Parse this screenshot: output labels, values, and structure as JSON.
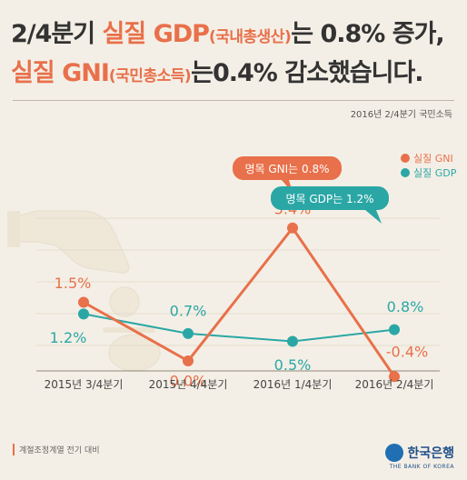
{
  "headline": {
    "line1": {
      "a": "2/4분기 ",
      "b": "실질 GDP",
      "c": "(국내총생산)",
      "d": "는 0.8% 증가,"
    },
    "line2": {
      "a": "실질 GNI",
      "b": "(국민총소득)",
      "c": "는0.4% 감소했습니다."
    }
  },
  "source": "2016년 2/4분기 국민소득",
  "footnote": "계절조정계열 전기 대비",
  "logo": {
    "name": "한국은행",
    "sub": "THE BANK OF KOREA"
  },
  "colors": {
    "gni": "#e8704a",
    "gdp": "#2aa7a5",
    "text": "#333333",
    "background": "#f4efe6"
  },
  "chart_data": {
    "type": "line",
    "categories": [
      "2015년 3/4분기",
      "2015년 4/4분기",
      "2016년 1/4분기",
      "2016년 2/4분기"
    ],
    "series": [
      {
        "name": "실질 GNI",
        "values": [
          1.5,
          0.0,
          3.4,
          -0.4
        ],
        "labels": [
          "1.5%",
          "0.0%",
          "3.4%",
          "-0.4%"
        ],
        "color": "#e8704a"
      },
      {
        "name": "실질 GDP",
        "values": [
          1.2,
          0.7,
          0.5,
          0.8
        ],
        "labels": [
          "1.2%",
          "0.7%",
          "0.5%",
          "0.8%"
        ],
        "color": "#2aa7a5"
      }
    ],
    "legend_position": "top-right",
    "grid": true,
    "callouts": [
      "명목 GNI는 0.8%",
      "명목 GDP는 1.2%"
    ]
  }
}
